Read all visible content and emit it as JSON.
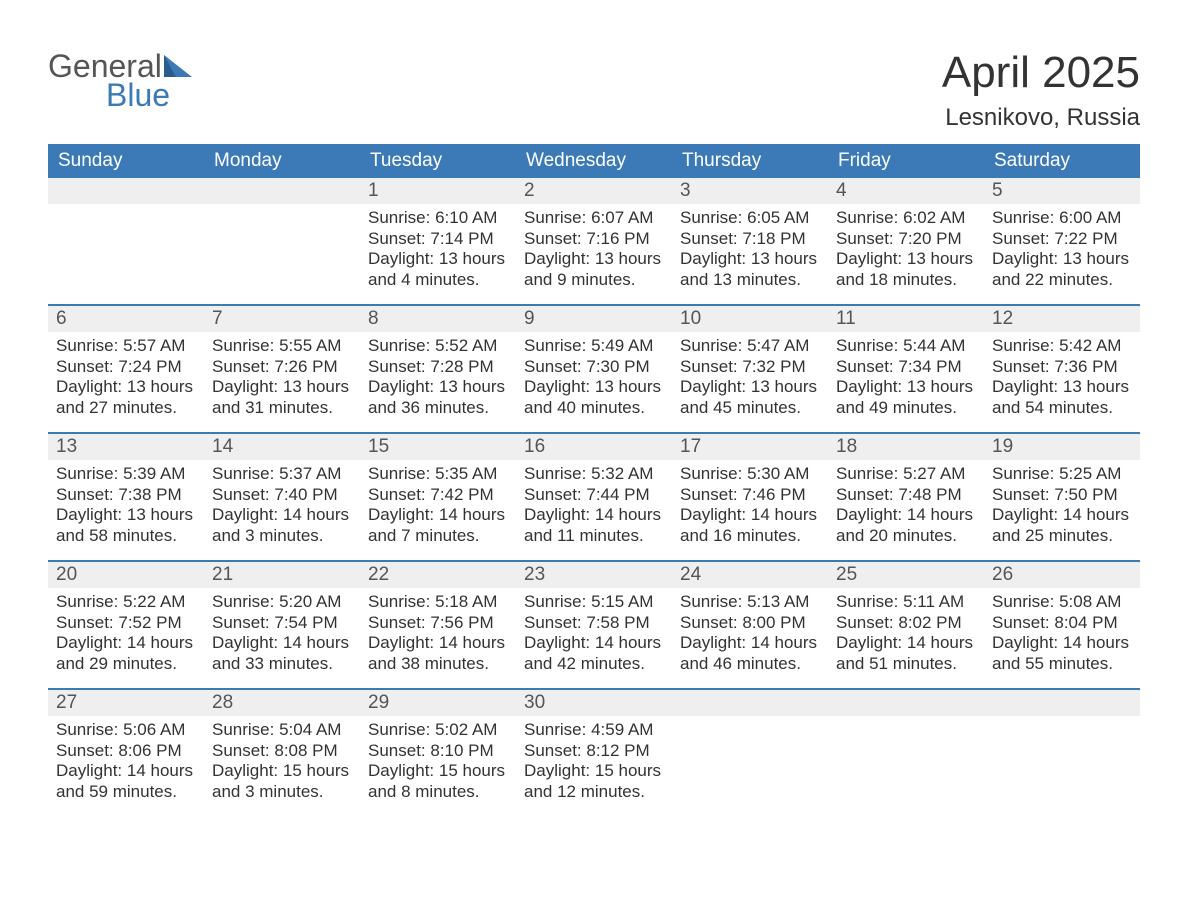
{
  "brand": {
    "word1": "General",
    "word2": "Blue",
    "tri_color": "#3b79b7"
  },
  "title": "April 2025",
  "location": "Lesnikovo, Russia",
  "colors": {
    "header_bg": "#3b79b7",
    "header_text": "#ffffff",
    "daynum_bg": "#efefef",
    "text": "#333333",
    "week_divider": "#3b79b7"
  },
  "fonts": {
    "title_pt": 44,
    "location_pt": 24,
    "dayhead_pt": 19,
    "daynum_pt": 19,
    "body_pt": 17
  },
  "day_headers": [
    "Sunday",
    "Monday",
    "Tuesday",
    "Wednesday",
    "Thursday",
    "Friday",
    "Saturday"
  ],
  "labels": {
    "sunrise": "Sunrise: ",
    "sunset": "Sunset: ",
    "daylight": "Daylight: "
  },
  "weeks": [
    [
      {
        "day": null
      },
      {
        "day": null
      },
      {
        "day": 1,
        "sunrise": "6:10 AM",
        "sunset": "7:14 PM",
        "daylight": "13 hours and 4 minutes."
      },
      {
        "day": 2,
        "sunrise": "6:07 AM",
        "sunset": "7:16 PM",
        "daylight": "13 hours and 9 minutes."
      },
      {
        "day": 3,
        "sunrise": "6:05 AM",
        "sunset": "7:18 PM",
        "daylight": "13 hours and 13 minutes."
      },
      {
        "day": 4,
        "sunrise": "6:02 AM",
        "sunset": "7:20 PM",
        "daylight": "13 hours and 18 minutes."
      },
      {
        "day": 5,
        "sunrise": "6:00 AM",
        "sunset": "7:22 PM",
        "daylight": "13 hours and 22 minutes."
      }
    ],
    [
      {
        "day": 6,
        "sunrise": "5:57 AM",
        "sunset": "7:24 PM",
        "daylight": "13 hours and 27 minutes."
      },
      {
        "day": 7,
        "sunrise": "5:55 AM",
        "sunset": "7:26 PM",
        "daylight": "13 hours and 31 minutes."
      },
      {
        "day": 8,
        "sunrise": "5:52 AM",
        "sunset": "7:28 PM",
        "daylight": "13 hours and 36 minutes."
      },
      {
        "day": 9,
        "sunrise": "5:49 AM",
        "sunset": "7:30 PM",
        "daylight": "13 hours and 40 minutes."
      },
      {
        "day": 10,
        "sunrise": "5:47 AM",
        "sunset": "7:32 PM",
        "daylight": "13 hours and 45 minutes."
      },
      {
        "day": 11,
        "sunrise": "5:44 AM",
        "sunset": "7:34 PM",
        "daylight": "13 hours and 49 minutes."
      },
      {
        "day": 12,
        "sunrise": "5:42 AM",
        "sunset": "7:36 PM",
        "daylight": "13 hours and 54 minutes."
      }
    ],
    [
      {
        "day": 13,
        "sunrise": "5:39 AM",
        "sunset": "7:38 PM",
        "daylight": "13 hours and 58 minutes."
      },
      {
        "day": 14,
        "sunrise": "5:37 AM",
        "sunset": "7:40 PM",
        "daylight": "14 hours and 3 minutes."
      },
      {
        "day": 15,
        "sunrise": "5:35 AM",
        "sunset": "7:42 PM",
        "daylight": "14 hours and 7 minutes."
      },
      {
        "day": 16,
        "sunrise": "5:32 AM",
        "sunset": "7:44 PM",
        "daylight": "14 hours and 11 minutes."
      },
      {
        "day": 17,
        "sunrise": "5:30 AM",
        "sunset": "7:46 PM",
        "daylight": "14 hours and 16 minutes."
      },
      {
        "day": 18,
        "sunrise": "5:27 AM",
        "sunset": "7:48 PM",
        "daylight": "14 hours and 20 minutes."
      },
      {
        "day": 19,
        "sunrise": "5:25 AM",
        "sunset": "7:50 PM",
        "daylight": "14 hours and 25 minutes."
      }
    ],
    [
      {
        "day": 20,
        "sunrise": "5:22 AM",
        "sunset": "7:52 PM",
        "daylight": "14 hours and 29 minutes."
      },
      {
        "day": 21,
        "sunrise": "5:20 AM",
        "sunset": "7:54 PM",
        "daylight": "14 hours and 33 minutes."
      },
      {
        "day": 22,
        "sunrise": "5:18 AM",
        "sunset": "7:56 PM",
        "daylight": "14 hours and 38 minutes."
      },
      {
        "day": 23,
        "sunrise": "5:15 AM",
        "sunset": "7:58 PM",
        "daylight": "14 hours and 42 minutes."
      },
      {
        "day": 24,
        "sunrise": "5:13 AM",
        "sunset": "8:00 PM",
        "daylight": "14 hours and 46 minutes."
      },
      {
        "day": 25,
        "sunrise": "5:11 AM",
        "sunset": "8:02 PM",
        "daylight": "14 hours and 51 minutes."
      },
      {
        "day": 26,
        "sunrise": "5:08 AM",
        "sunset": "8:04 PM",
        "daylight": "14 hours and 55 minutes."
      }
    ],
    [
      {
        "day": 27,
        "sunrise": "5:06 AM",
        "sunset": "8:06 PM",
        "daylight": "14 hours and 59 minutes."
      },
      {
        "day": 28,
        "sunrise": "5:04 AM",
        "sunset": "8:08 PM",
        "daylight": "15 hours and 3 minutes."
      },
      {
        "day": 29,
        "sunrise": "5:02 AM",
        "sunset": "8:10 PM",
        "daylight": "15 hours and 8 minutes."
      },
      {
        "day": 30,
        "sunrise": "4:59 AM",
        "sunset": "8:12 PM",
        "daylight": "15 hours and 12 minutes."
      },
      {
        "day": null
      },
      {
        "day": null
      },
      {
        "day": null
      }
    ]
  ]
}
